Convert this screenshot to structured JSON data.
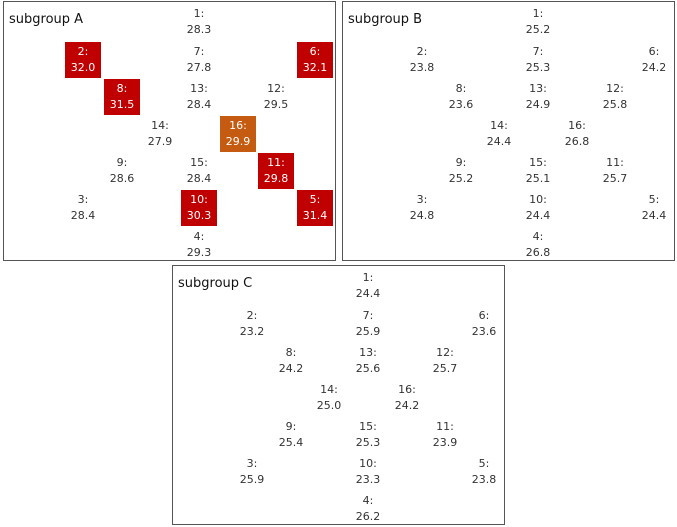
{
  "colors": {
    "highlight_red": "#c00000",
    "highlight_orange": "#c55a11",
    "text": "#333333",
    "border": "#555555"
  },
  "panels": [
    {
      "title": "subgroup A",
      "cells": [
        {
          "id": "1:",
          "value": "28.3",
          "highlight": "none"
        },
        {
          "id": "2:",
          "value": "32.0",
          "highlight": "red"
        },
        {
          "id": "7:",
          "value": "27.8",
          "highlight": "none"
        },
        {
          "id": "6:",
          "value": "32.1",
          "highlight": "red"
        },
        {
          "id": "8:",
          "value": "31.5",
          "highlight": "red"
        },
        {
          "id": "13:",
          "value": "28.4",
          "highlight": "none"
        },
        {
          "id": "12:",
          "value": "29.5",
          "highlight": "none"
        },
        {
          "id": "14:",
          "value": "27.9",
          "highlight": "none"
        },
        {
          "id": "16:",
          "value": "29.9",
          "highlight": "orange"
        },
        {
          "id": "9:",
          "value": "28.6",
          "highlight": "none"
        },
        {
          "id": "15:",
          "value": "28.4",
          "highlight": "none"
        },
        {
          "id": "11:",
          "value": "29.8",
          "highlight": "red"
        },
        {
          "id": "3:",
          "value": "28.4",
          "highlight": "none"
        },
        {
          "id": "10:",
          "value": "30.3",
          "highlight": "red"
        },
        {
          "id": "5:",
          "value": "31.4",
          "highlight": "red"
        },
        {
          "id": "4:",
          "value": "29.3",
          "highlight": "none"
        }
      ]
    },
    {
      "title": "subgroup B",
      "cells": [
        {
          "id": "1:",
          "value": "25.2",
          "highlight": "none"
        },
        {
          "id": "2:",
          "value": "23.8",
          "highlight": "none"
        },
        {
          "id": "7:",
          "value": "25.3",
          "highlight": "none"
        },
        {
          "id": "6:",
          "value": "24.2",
          "highlight": "none"
        },
        {
          "id": "8:",
          "value": "23.6",
          "highlight": "none"
        },
        {
          "id": "13:",
          "value": "24.9",
          "highlight": "none"
        },
        {
          "id": "12:",
          "value": "25.8",
          "highlight": "none"
        },
        {
          "id": "14:",
          "value": "24.4",
          "highlight": "none"
        },
        {
          "id": "16:",
          "value": "26.8",
          "highlight": "none"
        },
        {
          "id": "9:",
          "value": "25.2",
          "highlight": "none"
        },
        {
          "id": "15:",
          "value": "25.1",
          "highlight": "none"
        },
        {
          "id": "11:",
          "value": "25.7",
          "highlight": "none"
        },
        {
          "id": "3:",
          "value": "24.8",
          "highlight": "none"
        },
        {
          "id": "10:",
          "value": "24.4",
          "highlight": "none"
        },
        {
          "id": "5:",
          "value": "24.4",
          "highlight": "none"
        },
        {
          "id": "4:",
          "value": "26.8",
          "highlight": "none"
        }
      ]
    },
    {
      "title": "subgroup C",
      "cells": [
        {
          "id": "1:",
          "value": "24.4",
          "highlight": "none"
        },
        {
          "id": "2:",
          "value": "23.2",
          "highlight": "none"
        },
        {
          "id": "7:",
          "value": "25.9",
          "highlight": "none"
        },
        {
          "id": "6:",
          "value": "23.6",
          "highlight": "none"
        },
        {
          "id": "8:",
          "value": "24.2",
          "highlight": "none"
        },
        {
          "id": "13:",
          "value": "25.6",
          "highlight": "none"
        },
        {
          "id": "12:",
          "value": "25.7",
          "highlight": "none"
        },
        {
          "id": "14:",
          "value": "25.0",
          "highlight": "none"
        },
        {
          "id": "16:",
          "value": "24.2",
          "highlight": "none"
        },
        {
          "id": "9:",
          "value": "25.4",
          "highlight": "none"
        },
        {
          "id": "15:",
          "value": "25.3",
          "highlight": "none"
        },
        {
          "id": "11:",
          "value": "23.9",
          "highlight": "none"
        },
        {
          "id": "3:",
          "value": "25.9",
          "highlight": "none"
        },
        {
          "id": "10:",
          "value": "23.3",
          "highlight": "none"
        },
        {
          "id": "5:",
          "value": "23.8",
          "highlight": "none"
        },
        {
          "id": "4:",
          "value": "26.2",
          "highlight": "none"
        }
      ]
    }
  ]
}
